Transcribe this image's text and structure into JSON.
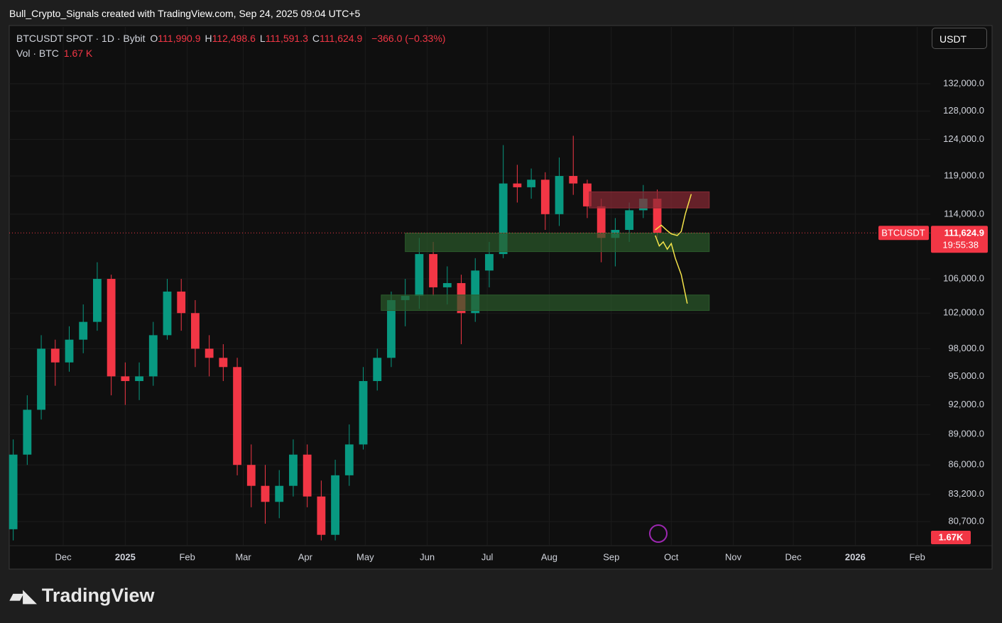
{
  "header": {
    "attribution": "Bull_Crypto_Signals created with TradingView.com, Sep 24, 2025 09:04 UTC+5"
  },
  "legend": {
    "symbol": "BTCUSDT SPOT · 1D · Bybit",
    "ohlc_labels": [
      "O",
      "H",
      "L",
      "C"
    ],
    "ohlc_values": [
      "111,990.9",
      "112,498.6",
      "111,591.3",
      "111,624.9"
    ],
    "change": "−366.0 (−0.33%)",
    "volume_label": "Vol · BTC",
    "volume_value": "1.67 K"
  },
  "price_scale_button": "USDT",
  "footer": {
    "brand": "TradingView"
  },
  "chart_data": {
    "type": "candlestick",
    "log_scale": true,
    "grid": true,
    "up_color": "#089981",
    "down_color": "#f23645",
    "x": [
      -25,
      -18,
      -11,
      -4,
      3,
      10,
      17,
      24,
      31,
      38,
      45,
      52,
      59,
      66,
      73,
      80,
      87,
      94,
      101,
      108,
      115,
      122,
      129,
      136,
      143,
      150,
      157,
      164,
      171,
      178,
      185,
      192,
      199,
      206,
      213,
      220,
      227,
      234,
      241,
      248,
      255,
      262,
      269,
      276,
      283,
      290,
      297
    ],
    "open": [
      80000,
      87000,
      91500,
      98000,
      96500,
      99000,
      101000,
      106000,
      95000,
      94500,
      95000,
      99500,
      104500,
      102000,
      98000,
      97000,
      96000,
      86000,
      84000,
      82500,
      84000,
      87000,
      83000,
      79500,
      85000,
      88000,
      94500,
      97000,
      103500,
      104000,
      109000,
      105000,
      105500,
      102000,
      107000,
      109000,
      118000,
      117500,
      118500,
      114000,
      119000,
      118000,
      115000,
      111000,
      112000,
      114500,
      116000
    ],
    "high": [
      88500,
      93000,
      99500,
      99000,
      100500,
      103000,
      108000,
      106500,
      96500,
      96500,
      101000,
      106000,
      106000,
      103500,
      99500,
      98500,
      97000,
      88000,
      86000,
      85500,
      88500,
      88000,
      84500,
      86500,
      90000,
      96000,
      98000,
      104500,
      106000,
      111000,
      110500,
      107500,
      106500,
      108500,
      110500,
      123200,
      120500,
      120000,
      119500,
      121500,
      124500,
      118500,
      116000,
      113500,
      115500,
      117800,
      117200
    ],
    "low": [
      79000,
      86000,
      90500,
      94000,
      95500,
      97500,
      100000,
      93000,
      92000,
      92500,
      94000,
      99000,
      100000,
      96000,
      95000,
      94500,
      85000,
      82000,
      80500,
      81000,
      83000,
      82000,
      79000,
      79000,
      84000,
      87500,
      93500,
      96000,
      100500,
      102500,
      104000,
      103000,
      98500,
      101000,
      105000,
      108500,
      115500,
      116000,
      112000,
      112500,
      116500,
      113500,
      108000,
      107500,
      110500,
      113500,
      111000
    ],
    "close": [
      87000,
      91500,
      98000,
      96500,
      99000,
      101000,
      106000,
      95000,
      94500,
      95000,
      99500,
      104500,
      102000,
      98000,
      97000,
      96000,
      86000,
      84000,
      82500,
      84000,
      87000,
      83000,
      79500,
      85000,
      88000,
      94500,
      97000,
      103500,
      104000,
      109000,
      105000,
      105500,
      102000,
      107000,
      109000,
      118000,
      117500,
      118500,
      114000,
      119000,
      118000,
      115000,
      111000,
      112000,
      114500,
      116000,
      111624.9
    ],
    "xlim": [
      -27,
      433.5
    ],
    "xticks": [
      {
        "value": 0,
        "label": "Dec"
      },
      {
        "value": 31,
        "label": "2025"
      },
      {
        "value": 62,
        "label": "Feb"
      },
      {
        "value": 90,
        "label": "Mar"
      },
      {
        "value": 121,
        "label": "Apr"
      },
      {
        "value": 151,
        "label": "May"
      },
      {
        "value": 182,
        "label": "Jun"
      },
      {
        "value": 212,
        "label": "Jul"
      },
      {
        "value": 243,
        "label": "Aug"
      },
      {
        "value": 274,
        "label": "Sep"
      },
      {
        "value": 304,
        "label": "Oct"
      },
      {
        "value": 335,
        "label": "Nov"
      },
      {
        "value": 365,
        "label": "Dec"
      },
      {
        "value": 396,
        "label": "2026"
      },
      {
        "value": 427,
        "label": "Feb"
      }
    ],
    "ylim": [
      78600,
      140700
    ],
    "yticks": [
      {
        "value": 132000,
        "label": "132,000.0"
      },
      {
        "value": 128000,
        "label": "128,000.0"
      },
      {
        "value": 124000,
        "label": "124,000.0"
      },
      {
        "value": 119000,
        "label": "119,000.0"
      },
      {
        "value": 114000,
        "label": "114,000.0"
      },
      {
        "value": 106000,
        "label": "106,000.0"
      },
      {
        "value": 102000,
        "label": "102,000.0"
      },
      {
        "value": 98000,
        "label": "98,000.0"
      },
      {
        "value": 95000,
        "label": "95,000.0"
      },
      {
        "value": 92000,
        "label": "92,000.0"
      },
      {
        "value": 89000,
        "label": "89,000.0"
      },
      {
        "value": 86000,
        "label": "86,000.0"
      },
      {
        "value": 83200,
        "label": "83,200.0"
      },
      {
        "value": 80700,
        "label": "80,700.0"
      }
    ],
    "last_price": {
      "value": 111624.9,
      "label": "111,624.9"
    },
    "symbol_tag": "BTCUSDT",
    "countdown": "19:55:38",
    "volume_tag": "1.67K",
    "zones": [
      {
        "color": "#8a2a35",
        "x": [
          263,
          323
        ],
        "values": [
          114800,
          116900
        ]
      },
      {
        "color": "#2b5a2b",
        "x": [
          171,
          323
        ],
        "values": [
          109300,
          111600
        ]
      },
      {
        "color": "#2b5a2b",
        "x": [
          159,
          323
        ],
        "values": [
          102300,
          104100
        ]
      }
    ],
    "projections": [
      {
        "color": "#f5e44a",
        "x": [
          296,
          299,
          302,
          304,
          307,
          309,
          311,
          314
        ],
        "values": [
          112000,
          112600,
          111900,
          111500,
          111300,
          111800,
          114000,
          116600
        ]
      },
      {
        "color": "#f5e44a",
        "x": [
          296,
          298,
          300,
          302,
          304,
          306,
          309,
          312
        ],
        "values": [
          111300,
          110000,
          110500,
          109600,
          110300,
          108500,
          106500,
          103100
        ]
      }
    ]
  }
}
